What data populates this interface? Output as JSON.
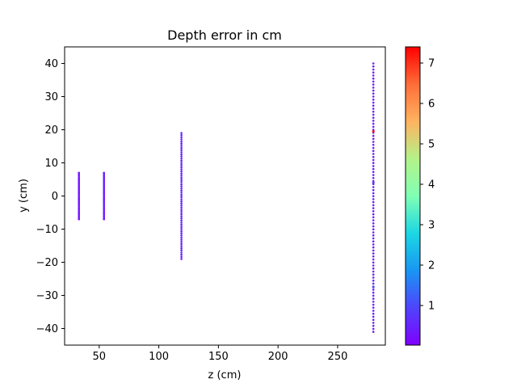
{
  "chart_data": {
    "type": "scatter",
    "title": "Depth error in cm",
    "xlabel": "z (cm)",
    "ylabel": "y (cm)",
    "xlim": [
      21,
      290
    ],
    "ylim": [
      -45,
      45
    ],
    "xticks": [
      50,
      100,
      150,
      200,
      250
    ],
    "yticks": [
      -40,
      -30,
      -20,
      -10,
      0,
      10,
      20,
      30,
      40
    ],
    "grid": false,
    "colorbar": {
      "colormap": "rainbow",
      "range": [
        0.02,
        7.4
      ],
      "ticks": [
        1,
        2,
        3,
        4,
        5,
        6,
        7
      ]
    },
    "groups": [
      {
        "z": 33,
        "y_range": [
          -7,
          7
        ],
        "count": 34,
        "error": 0.25
      },
      {
        "z": 54,
        "y_range": [
          -7,
          7
        ],
        "count": 34,
        "error": 0.35
      },
      {
        "z": 119,
        "y_range": [
          -19,
          19
        ],
        "count": 60,
        "error": 0.5
      },
      {
        "z": 280,
        "y_range": [
          -41,
          40
        ],
        "count": 90,
        "error": 0.4
      }
    ],
    "highlights": [
      {
        "z": 280,
        "y": 19.5,
        "error": 7.3
      },
      {
        "z": 280,
        "y": -27.5,
        "error": 1.0
      },
      {
        "z": 280,
        "y": 4,
        "error": 0.9
      }
    ]
  },
  "colors": {
    "low": "#8000ff",
    "high": "#ff0000"
  }
}
